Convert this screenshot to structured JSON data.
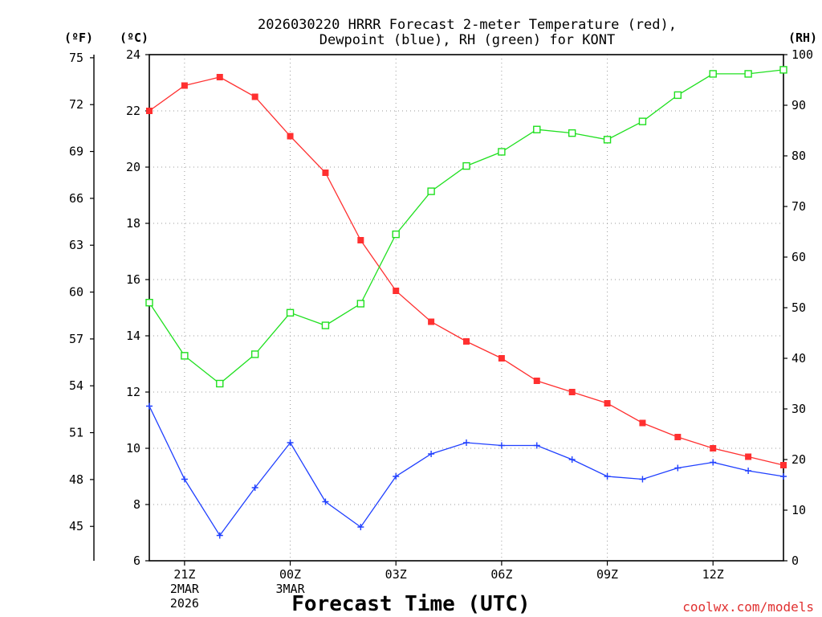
{
  "chart_data": {
    "type": "line",
    "title_line1": "2026030220 HRRR Forecast 2-meter Temperature (red),",
    "title_line2": "Dewpoint (blue), RH (green) for KONT",
    "xlabel": "Forecast Time (UTC)",
    "credit": "coolwx.com/models",
    "units": {
      "fahrenheit": "(ºF)",
      "celsius": "(ºC)",
      "rh": "(RH)"
    },
    "x": [
      0,
      1,
      2,
      3,
      4,
      5,
      6,
      7,
      8,
      9,
      10,
      11,
      12,
      13,
      14,
      15,
      16,
      17,
      18
    ],
    "x_ticks": [
      {
        "x": 1,
        "lines": [
          "21Z",
          "2MAR",
          "2026"
        ]
      },
      {
        "x": 4,
        "lines": [
          "00Z",
          "3MAR"
        ]
      },
      {
        "x": 7,
        "lines": [
          "03Z"
        ]
      },
      {
        "x": 10,
        "lines": [
          "06Z"
        ]
      },
      {
        "x": 13,
        "lines": [
          "09Z"
        ]
      },
      {
        "x": 16,
        "lines": [
          "12Z"
        ]
      }
    ],
    "celsius_axis": {
      "ylim": [
        6,
        24
      ],
      "ticks": [
        6,
        8,
        10,
        12,
        14,
        16,
        18,
        20,
        22,
        24
      ]
    },
    "fahrenheit_axis": {
      "ticks": [
        45,
        48,
        51,
        54,
        57,
        60,
        63,
        66,
        69,
        72,
        75
      ]
    },
    "rh_axis": {
      "ylim": [
        0,
        100
      ],
      "ticks": [
        0,
        10,
        20,
        30,
        40,
        50,
        60,
        70,
        80,
        90,
        100
      ]
    },
    "series": [
      {
        "name": "Temperature",
        "axis": "celsius",
        "color": "#ff3030",
        "marker": "filled-square",
        "values": [
          22.0,
          22.9,
          23.2,
          22.5,
          21.1,
          19.8,
          17.4,
          15.6,
          14.5,
          13.8,
          13.2,
          12.4,
          12.0,
          11.6,
          10.9,
          10.4,
          10.0,
          9.7,
          9.4
        ]
      },
      {
        "name": "Dewpoint",
        "axis": "celsius",
        "color": "#2040ff",
        "marker": "plus",
        "values": [
          11.5,
          8.9,
          6.9,
          8.6,
          10.2,
          8.1,
          7.2,
          9.0,
          9.8,
          10.2,
          10.1,
          10.1,
          9.6,
          9.0,
          8.9,
          9.3,
          9.5,
          9.2,
          9.0
        ]
      },
      {
        "name": "RH",
        "axis": "rh",
        "color": "#20e020",
        "marker": "open-square",
        "values": [
          51.0,
          40.5,
          35.0,
          40.8,
          49.0,
          46.5,
          50.8,
          64.5,
          73.0,
          78.0,
          80.8,
          85.2,
          84.5,
          83.2,
          86.8,
          92.0,
          96.2,
          96.2,
          97.0
        ]
      }
    ]
  }
}
